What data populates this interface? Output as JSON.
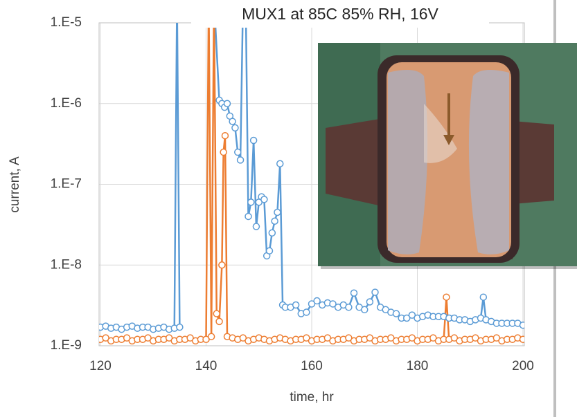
{
  "chart_data": {
    "type": "scatter-line",
    "title": "MUX1 at 85C 85% RH, 16V",
    "xlabel": "time, hr",
    "ylabel": "current, A",
    "xlim": [
      120,
      200
    ],
    "xticks": [
      120,
      140,
      160,
      180,
      200
    ],
    "ylim": [
      1e-09,
      1e-05
    ],
    "yscale": "log",
    "yticks": [
      {
        "value": 1e-09,
        "label": "1.E-9"
      },
      {
        "value": 1e-08,
        "label": "1.E-8"
      },
      {
        "value": 1e-07,
        "label": "1.E-7"
      },
      {
        "value": 1e-06,
        "label": "1.E-6"
      },
      {
        "value": 1e-05,
        "label": "1.E-5"
      }
    ],
    "grid": true,
    "series": [
      {
        "color": "#5b9bd5",
        "x": [
          120,
          121,
          122,
          123,
          124,
          125,
          126,
          127,
          128,
          129,
          130,
          131,
          132,
          133,
          134,
          134.5,
          135,
          136,
          141.5,
          142.5,
          143,
          143.5,
          144,
          144.5,
          145,
          145.5,
          146,
          146.5,
          147,
          147.5,
          148,
          148.5,
          149,
          149.5,
          150,
          150.5,
          151,
          151.5,
          152,
          152.5,
          153,
          153.5,
          154,
          154.5,
          155,
          156,
          157,
          158,
          159,
          160,
          161,
          162,
          163,
          164,
          165,
          166,
          167,
          168,
          169,
          170,
          171,
          172,
          173,
          174,
          175,
          176,
          177,
          178,
          179,
          180,
          181,
          182,
          183,
          184,
          185,
          186,
          187,
          188,
          189,
          190,
          191,
          192,
          192.5,
          193,
          194,
          195,
          196,
          197,
          198,
          199,
          200
        ],
        "values": [
          1.7e-09,
          1.75e-09,
          1.65e-09,
          1.7e-09,
          1.6e-09,
          1.7e-09,
          1.75e-09,
          1.65e-09,
          1.7e-09,
          1.7e-09,
          1.6e-09,
          1.65e-09,
          1.7e-09,
          1.6e-09,
          1.65e-09,
          2e-05,
          1.7e-09,
          null,
          2e-05,
          1.1e-06,
          1e-06,
          9e-07,
          1e-06,
          7e-07,
          6e-07,
          5e-07,
          2.5e-07,
          2e-07,
          2e-05,
          2e-05,
          4e-08,
          6e-08,
          3.5e-07,
          3e-08,
          6e-08,
          7e-08,
          6.5e-08,
          1.3e-08,
          1.5e-08,
          2.5e-08,
          3.5e-08,
          4.5e-08,
          1.8e-07,
          3.2e-09,
          3e-09,
          3e-09,
          3.2e-09,
          2.5e-09,
          2.6e-09,
          3.3e-09,
          3.6e-09,
          3.2e-09,
          3.4e-09,
          3.3e-09,
          3e-09,
          3.2e-09,
          3e-09,
          4.5e-09,
          3e-09,
          2.8e-09,
          3.5e-09,
          4.6e-09,
          3e-09,
          2.8e-09,
          2.6e-09,
          2.5e-09,
          2.2e-09,
          2.2e-09,
          2.4e-09,
          2.2e-09,
          2.3e-09,
          2.4e-09,
          2.3e-09,
          2.3e-09,
          2.3e-09,
          2.2e-09,
          2.2e-09,
          2.1e-09,
          2.1e-09,
          2e-09,
          2.1e-09,
          2.2e-09,
          4e-09,
          2.1e-09,
          2e-09,
          1.9e-09,
          1.9e-09,
          1.9e-09,
          1.9e-09,
          1.9e-09,
          1.8e-09
        ]
      },
      {
        "color": "#ed7d31",
        "x": [
          120,
          121,
          122,
          123,
          124,
          125,
          126,
          127,
          128,
          129,
          130,
          131,
          132,
          133,
          134,
          135,
          136,
          137,
          138,
          139,
          140,
          140.5,
          141,
          141.5,
          142,
          142.5,
          143,
          143.3,
          143.6,
          144,
          145,
          146,
          147,
          148,
          149,
          150,
          151,
          152,
          153,
          154,
          155,
          156,
          157,
          158,
          159,
          160,
          161,
          162,
          163,
          164,
          165,
          166,
          167,
          168,
          169,
          170,
          171,
          172,
          173,
          174,
          175,
          176,
          177,
          178,
          179,
          180,
          181,
          182,
          183,
          184,
          185,
          185.5,
          186,
          187,
          188,
          189,
          190,
          191,
          192,
          193,
          194,
          195,
          196,
          197,
          198,
          199,
          200
        ],
        "values": [
          1.2e-09,
          1.25e-09,
          1.15e-09,
          1.2e-09,
          1.2e-09,
          1.25e-09,
          1.15e-09,
          1.2e-09,
          1.2e-09,
          1.25e-09,
          1.15e-09,
          1.2e-09,
          1.2e-09,
          1.25e-09,
          1.15e-09,
          1.2e-09,
          1.2e-09,
          1.25e-09,
          1.15e-09,
          1.2e-09,
          1.2e-09,
          2e-05,
          1.3e-09,
          2e-05,
          2.5e-09,
          2e-09,
          1e-08,
          2.5e-07,
          4e-07,
          1.3e-09,
          1.25e-09,
          1.2e-09,
          1.25e-09,
          1.15e-09,
          1.2e-09,
          1.25e-09,
          1.2e-09,
          1.15e-09,
          1.2e-09,
          1.25e-09,
          1.2e-09,
          1.15e-09,
          1.2e-09,
          1.2e-09,
          1.25e-09,
          1.15e-09,
          1.2e-09,
          1.2e-09,
          1.25e-09,
          1.15e-09,
          1.2e-09,
          1.2e-09,
          1.25e-09,
          1.15e-09,
          1.2e-09,
          1.2e-09,
          1.25e-09,
          1.15e-09,
          1.2e-09,
          1.2e-09,
          1.25e-09,
          1.15e-09,
          1.2e-09,
          1.2e-09,
          1.25e-09,
          1.15e-09,
          1.2e-09,
          1.2e-09,
          1.25e-09,
          1.15e-09,
          1.2e-09,
          4e-09,
          1.2e-09,
          1.25e-09,
          1.15e-09,
          1.2e-09,
          1.2e-09,
          1.25e-09,
          1.15e-09,
          1.2e-09,
          1.2e-09,
          1.25e-09,
          1.15e-09,
          1.2e-09,
          1.2e-09,
          1.25e-09,
          1.2e-09
        ]
      }
    ]
  }
}
